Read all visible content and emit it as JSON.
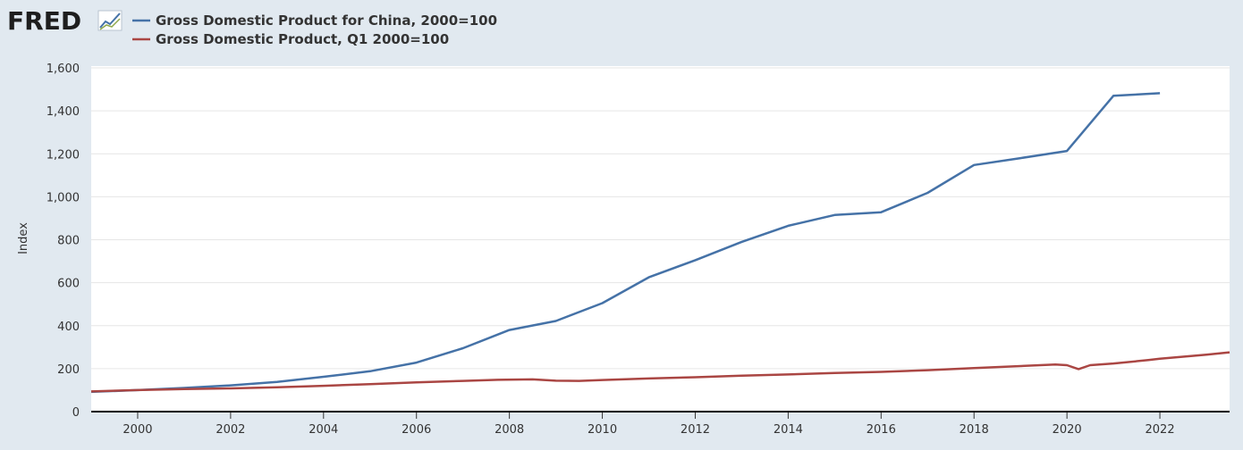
{
  "brand": {
    "logo_text": "FRED",
    "logo_icon": "trend-chart-icon"
  },
  "colors": {
    "background": "#e1e9f0",
    "plot_background": "#ffffff",
    "grid": "#e6e6e6",
    "series_1": "#4572a7",
    "series_2": "#aa4643"
  },
  "chart_data": {
    "type": "line",
    "ylabel": "Index",
    "ylim": [
      0,
      1600
    ],
    "xlim": [
      1999.0,
      2023.5
    ],
    "y_ticks": [
      0,
      200,
      400,
      600,
      800,
      1000,
      1200,
      1400,
      1600
    ],
    "y_tick_labels": [
      "0",
      "200",
      "400",
      "600",
      "800",
      "1,000",
      "1,200",
      "1,400",
      "1,600"
    ],
    "x_ticks": [
      2000,
      2002,
      2004,
      2006,
      2008,
      2010,
      2012,
      2014,
      2016,
      2018,
      2020,
      2022
    ],
    "x_tick_labels": [
      "2000",
      "2002",
      "2004",
      "2006",
      "2008",
      "2010",
      "2012",
      "2014",
      "2016",
      "2018",
      "2020",
      "2022"
    ],
    "grid": true,
    "legend": "top-left",
    "series": [
      {
        "name": "Gross Domestic Product for China, 2000=100",
        "color": "#4572a7",
        "points": [
          [
            1999,
            92
          ],
          [
            2000,
            100
          ],
          [
            2001,
            110
          ],
          [
            2002,
            122
          ],
          [
            2003,
            138
          ],
          [
            2004,
            162
          ],
          [
            2005,
            188
          ],
          [
            2006,
            228
          ],
          [
            2007,
            295
          ],
          [
            2008,
            380
          ],
          [
            2009,
            422
          ],
          [
            2010,
            505
          ],
          [
            2011,
            625
          ],
          [
            2012,
            705
          ],
          [
            2013,
            790
          ],
          [
            2014,
            865
          ],
          [
            2015,
            915
          ],
          [
            2016,
            928
          ],
          [
            2017,
            1018
          ],
          [
            2018,
            1148
          ],
          [
            2019,
            1180
          ],
          [
            2020,
            1213
          ],
          [
            2021,
            1470
          ],
          [
            2022,
            1482
          ]
        ]
      },
      {
        "name": "Gross Domestic Product, Q1 2000=100",
        "color": "#aa4643",
        "points": [
          [
            1999.0,
            94
          ],
          [
            2000.0,
            100
          ],
          [
            2001.0,
            105
          ],
          [
            2002.0,
            108
          ],
          [
            2003.0,
            113
          ],
          [
            2004.0,
            120
          ],
          [
            2005.0,
            128
          ],
          [
            2006.0,
            136
          ],
          [
            2007.0,
            143
          ],
          [
            2007.75,
            148
          ],
          [
            2008.5,
            150
          ],
          [
            2009.0,
            144
          ],
          [
            2009.5,
            143
          ],
          [
            2010.0,
            147
          ],
          [
            2011.0,
            154
          ],
          [
            2012.0,
            160
          ],
          [
            2013.0,
            167
          ],
          [
            2014.0,
            173
          ],
          [
            2015.0,
            180
          ],
          [
            2016.0,
            185
          ],
          [
            2017.0,
            193
          ],
          [
            2018.0,
            203
          ],
          [
            2019.0,
            212
          ],
          [
            2019.75,
            219
          ],
          [
            2020.0,
            216
          ],
          [
            2020.25,
            198
          ],
          [
            2020.5,
            216
          ],
          [
            2021.0,
            224
          ],
          [
            2021.75,
            240
          ],
          [
            2022.0,
            246
          ],
          [
            2023.0,
            265
          ],
          [
            2023.5,
            276
          ]
        ]
      }
    ]
  }
}
